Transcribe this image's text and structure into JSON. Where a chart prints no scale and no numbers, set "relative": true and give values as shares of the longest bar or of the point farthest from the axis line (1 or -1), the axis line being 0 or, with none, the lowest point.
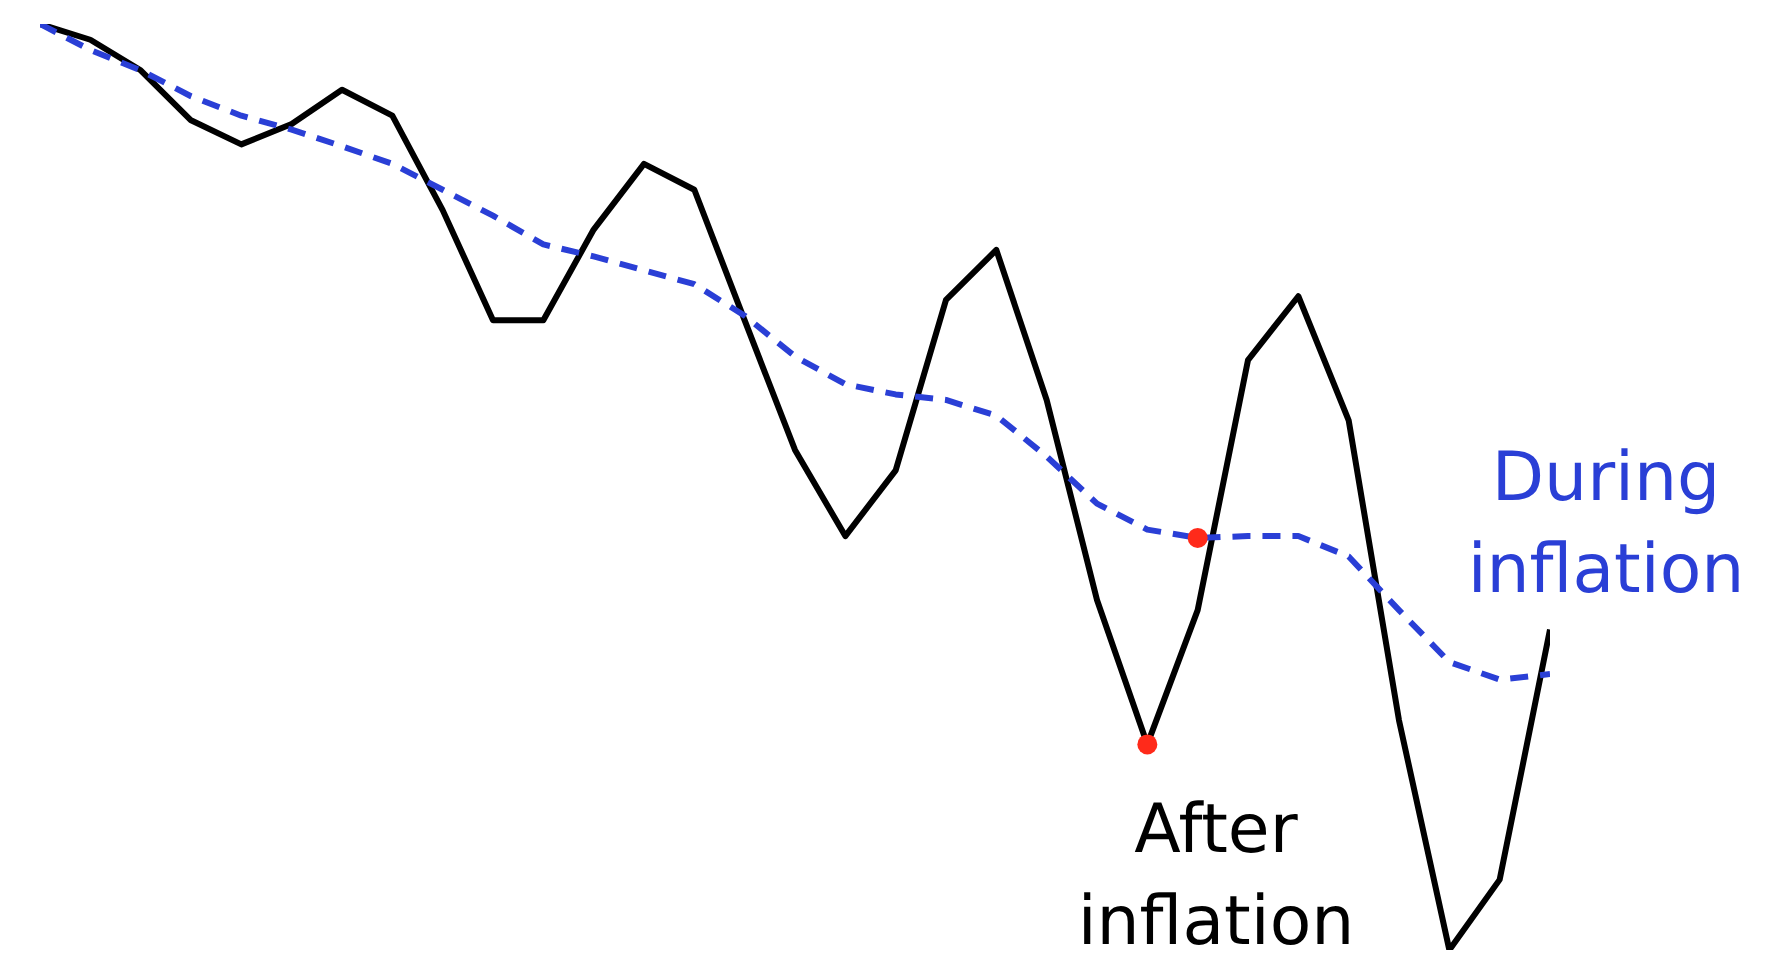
{
  "chart_data": {
    "type": "line",
    "relative": true,
    "legend": false,
    "grid": false,
    "marker": "none",
    "categories": [
      null,
      null,
      null,
      null,
      null,
      null,
      null,
      null,
      null,
      null,
      null,
      null,
      null,
      null,
      null,
      null,
      null,
      null,
      null,
      null,
      null,
      null,
      null,
      null,
      null,
      null,
      null,
      null,
      null,
      null,
      null
    ],
    "series": [
      {
        "name": "After inflation",
        "color": "#000000",
        "line_style": "solid",
        "values": [
          1.0,
          0.983,
          0.95,
          0.896,
          0.87,
          0.892,
          0.929,
          0.901,
          0.799,
          0.68,
          0.68,
          0.778,
          0.849,
          0.821,
          0.68,
          0.54,
          0.447,
          0.518,
          0.702,
          0.756,
          0.594,
          0.378,
          0.222,
          0.367,
          0.637,
          0.706,
          0.572,
          0.248,
          0.0,
          0.076,
          0.346
        ]
      },
      {
        "name": "During inflation",
        "color": "#2a3fd6",
        "line_style": "dashed",
        "values": [
          1.0,
          0.972,
          0.95,
          0.922,
          0.901,
          0.886,
          0.868,
          0.849,
          0.821,
          0.793,
          0.762,
          0.749,
          0.734,
          0.719,
          0.685,
          0.641,
          0.611,
          0.6,
          0.594,
          0.577,
          0.533,
          0.482,
          0.454,
          0.445,
          0.447,
          0.447,
          0.425,
          0.367,
          0.311,
          0.292,
          0.298
        ]
      },
      {
        "color": "#ff2a1a",
        "marker": "circle",
        "values": [
          null,
          null,
          null,
          null,
          null,
          null,
          null,
          null,
          null,
          null,
          null,
          null,
          null,
          null,
          null,
          null,
          null,
          null,
          null,
          null,
          null,
          null,
          0.222,
          null,
          null,
          null,
          null,
          null,
          null,
          null,
          null
        ]
      },
      {
        "color": "#ff2a1a",
        "marker": "circle",
        "values": [
          null,
          null,
          null,
          null,
          null,
          null,
          null,
          null,
          null,
          null,
          null,
          null,
          null,
          null,
          null,
          null,
          null,
          null,
          null,
          null,
          null,
          null,
          null,
          0.445,
          null,
          null,
          null,
          null,
          null,
          null,
          null
        ]
      }
    ]
  }
}
